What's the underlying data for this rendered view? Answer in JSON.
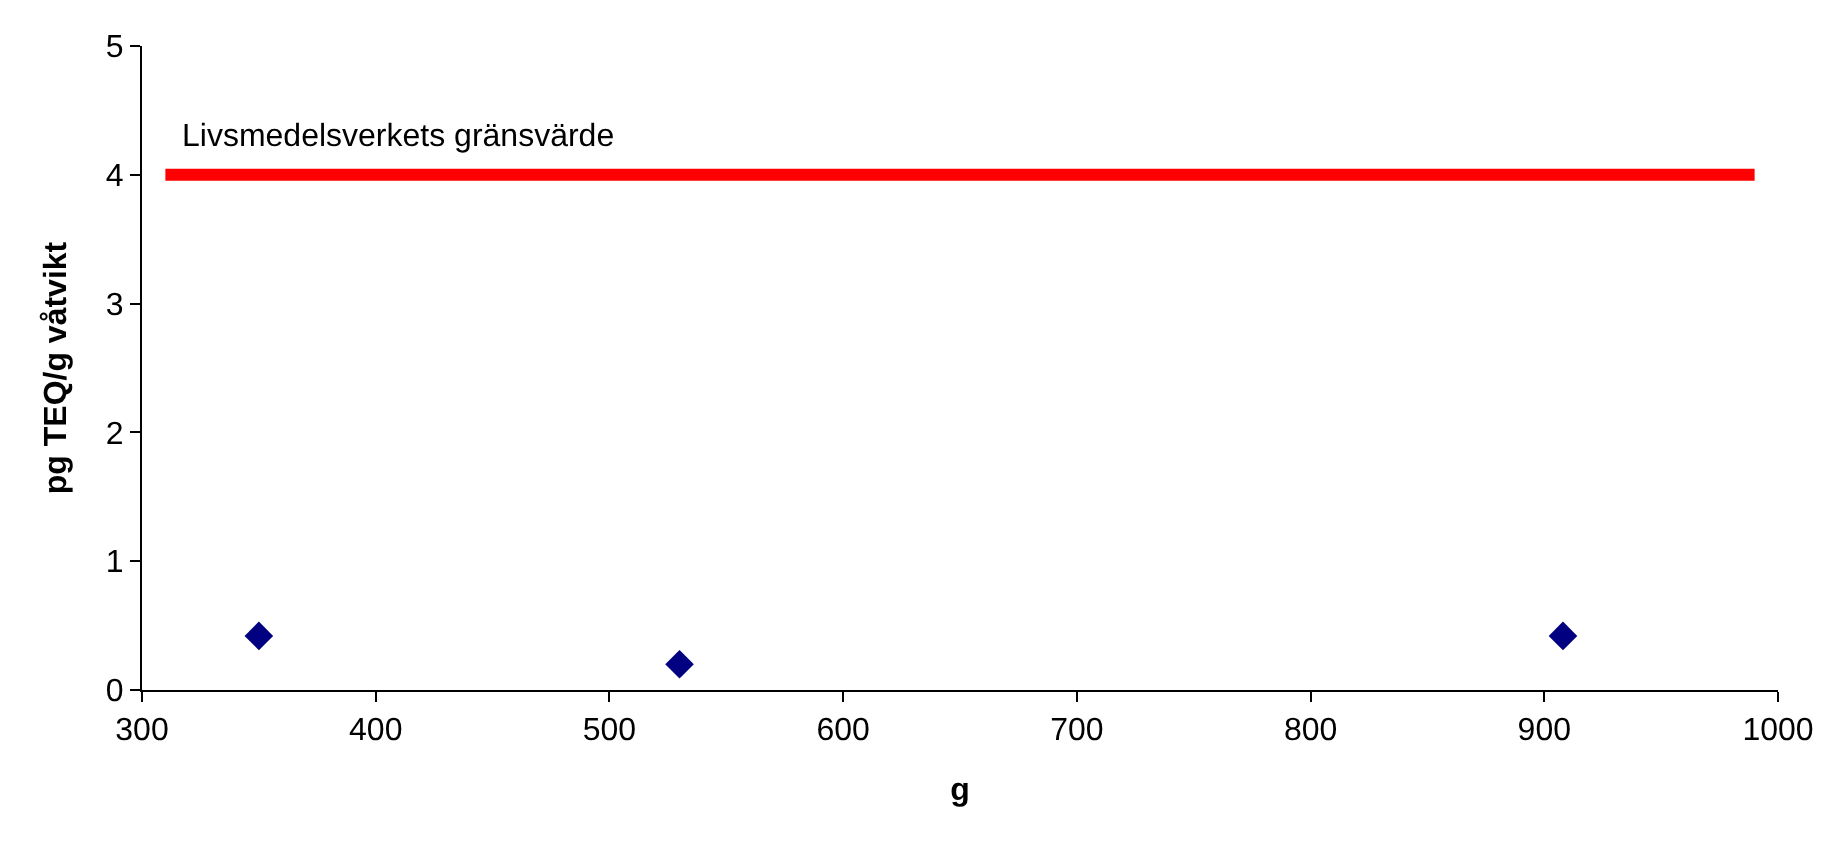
{
  "chart_data": {
    "type": "scatter",
    "xlabel": "g",
    "ylabel": "pg TEQ/g våtvikt",
    "series": [
      {
        "color": "#000080",
        "marker": "diamond",
        "x": [
          350,
          530,
          908
        ],
        "values": [
          0.42,
          0.2,
          0.42
        ]
      },
      {
        "type": "line",
        "color": "#ff0000",
        "marker": "none",
        "x": [
          310,
          990
        ],
        "values": [
          4,
          4
        ]
      }
    ],
    "annotations": [
      {
        "text": "Livsmedelsverkets gränsvärde",
        "x": 310,
        "y": 4
      }
    ],
    "xlim": [
      300,
      1000
    ],
    "xticks": [
      300,
      400,
      500,
      600,
      700,
      800,
      900,
      1000
    ],
    "ylim": [
      0,
      5
    ],
    "yticks": [
      0,
      1,
      2,
      3,
      4,
      5
    ]
  }
}
